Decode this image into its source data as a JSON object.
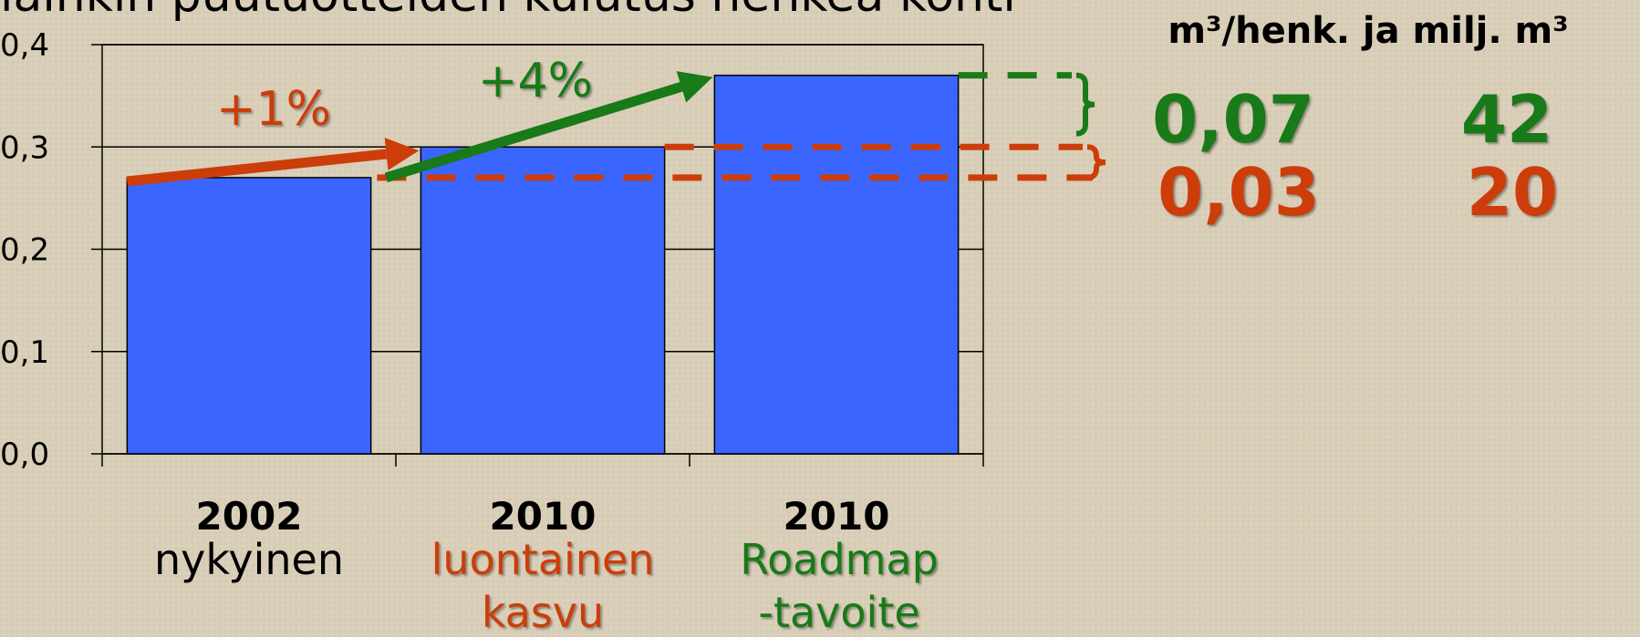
{
  "chart_data": {
    "type": "bar",
    "title": "lainkin puutuotteiden kulutus henkeä kohti",
    "categories": [
      "2002",
      "2010",
      "2010"
    ],
    "category_descriptions": [
      [
        "nykyinen"
      ],
      [
        "luontainen",
        "kasvu"
      ],
      [
        "Roadmap",
        "-tavoite"
      ]
    ],
    "category_colors": [
      "#000000",
      "#cc3d0a",
      "#187a18"
    ],
    "values": [
      0.27,
      0.3,
      0.37
    ],
    "color": "#3a66ff",
    "ylim": [
      0,
      0.4
    ],
    "yticks": [
      {
        "value": 0,
        "label": "0,0"
      },
      {
        "value": 0.1,
        "label": "0,1"
      },
      {
        "value": 0.2,
        "label": "0,2"
      },
      {
        "value": 0.3,
        "label": "0,3"
      },
      {
        "value": 0.4,
        "label": "0,4"
      }
    ],
    "grid": true,
    "annotations": [
      {
        "text": "+1%",
        "color": "#cc3d0a"
      },
      {
        "text": "+4%",
        "color": "#187a18"
      }
    ]
  },
  "side_table": {
    "header": "m³/henk. ja milj. m³",
    "rows": [
      {
        "color": "#187a18",
        "cells": [
          "0,07",
          "42"
        ]
      },
      {
        "color": "#cc3d0a",
        "cells": [
          "0,03",
          "20"
        ]
      }
    ]
  }
}
